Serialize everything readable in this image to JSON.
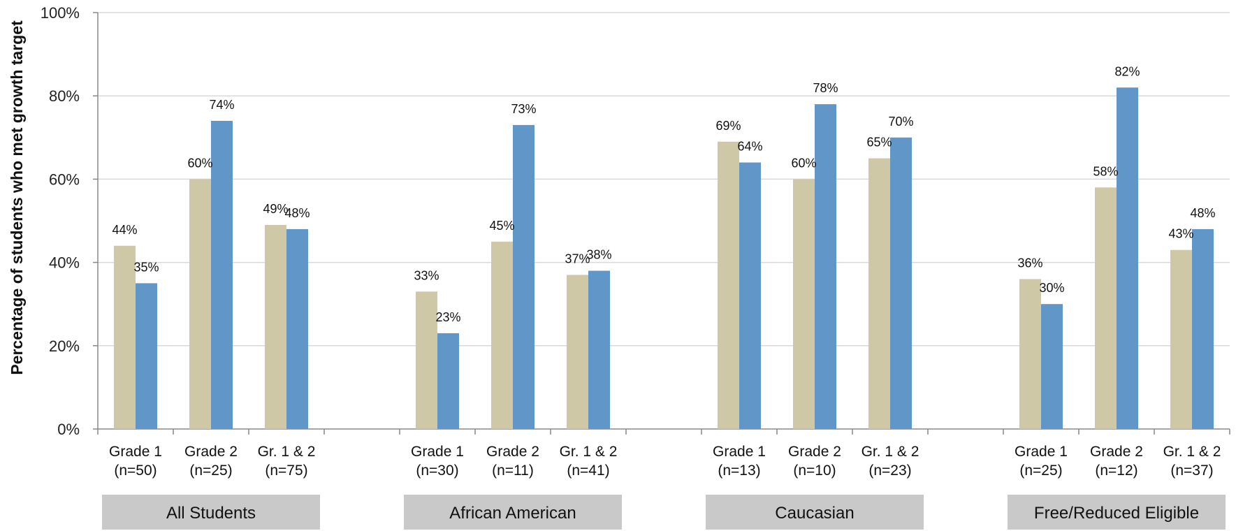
{
  "chart_data": {
    "type": "bar",
    "ylabel": "Percentage of students who met growth target",
    "ylim": [
      0,
      100
    ],
    "yticks": [
      "0%",
      "20%",
      "40%",
      "60%",
      "80%",
      "100%"
    ],
    "grid": true,
    "colors": {
      "series_a": "#cfc8a6",
      "series_b": "#6196c9"
    },
    "groups": [
      {
        "label": "All Students",
        "categories": [
          {
            "line1": "Grade 1",
            "line2": "(n=50)",
            "a": 44,
            "b": 35,
            "a_label": "44%",
            "b_label": "35%"
          },
          {
            "line1": "Grade 2",
            "line2": "(n=25)",
            "a": 60,
            "b": 74,
            "a_label": "60%",
            "b_label": "74%"
          },
          {
            "line1": "Gr. 1 & 2",
            "line2": "(n=75)",
            "a": 49,
            "b": 48,
            "a_label": "49%",
            "b_label": "48%"
          }
        ]
      },
      {
        "label": "African American",
        "categories": [
          {
            "line1": "Grade 1",
            "line2": "(n=30)",
            "a": 33,
            "b": 23,
            "a_label": "33%",
            "b_label": "23%"
          },
          {
            "line1": "Grade 2",
            "line2": "(n=11)",
            "a": 45,
            "b": 73,
            "a_label": "45%",
            "b_label": "73%"
          },
          {
            "line1": "Gr. 1 & 2",
            "line2": "(n=41)",
            "a": 37,
            "b": 38,
            "a_label": "37%",
            "b_label": "38%"
          }
        ]
      },
      {
        "label": "Caucasian",
        "categories": [
          {
            "line1": "Grade 1",
            "line2": "(n=13)",
            "a": 69,
            "b": 64,
            "a_label": "69%",
            "b_label": "64%"
          },
          {
            "line1": "Grade 2",
            "line2": "(n=10)",
            "a": 60,
            "b": 78,
            "a_label": "60%",
            "b_label": "78%"
          },
          {
            "line1": "Gr. 1 & 2",
            "line2": "(n=23)",
            "a": 65,
            "b": 70,
            "a_label": "65%",
            "b_label": "70%"
          }
        ]
      },
      {
        "label": "Free/Reduced Eligible",
        "categories": [
          {
            "line1": "Grade 1",
            "line2": "(n=25)",
            "a": 36,
            "b": 30,
            "a_label": "36%",
            "b_label": "30%"
          },
          {
            "line1": "Grade 2",
            "line2": "(n=12)",
            "a": 58,
            "b": 82,
            "a_label": "58%",
            "b_label": "82%"
          },
          {
            "line1": "Gr. 1 & 2",
            "line2": "(n=37)",
            "a": 43,
            "b": 48,
            "a_label": "43%",
            "b_label": "48%"
          }
        ]
      }
    ]
  }
}
